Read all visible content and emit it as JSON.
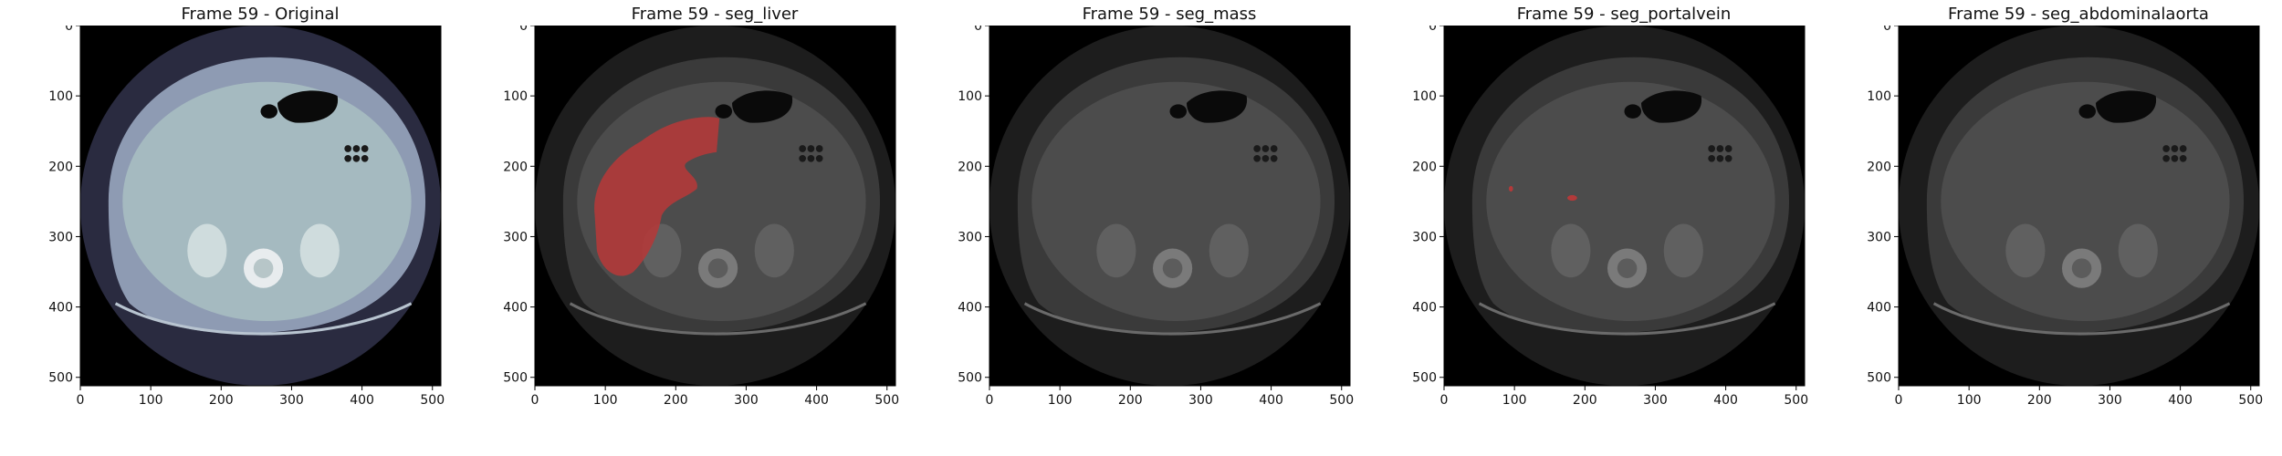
{
  "panels": [
    {
      "title": "Frame 59 - Original",
      "mode": "original"
    },
    {
      "title": "Frame 59 - seg_liver",
      "mode": "gray",
      "overlay": "liver"
    },
    {
      "title": "Frame 59 - seg_mass",
      "mode": "gray",
      "overlay": "none"
    },
    {
      "title": "Frame 59 - seg_portalvein",
      "mode": "gray",
      "overlay": "portalvein"
    },
    {
      "title": "Frame 59 - seg_abdominalaorta",
      "mode": "gray",
      "overlay": "none"
    }
  ],
  "axes": {
    "x_ticks": [
      "0",
      "100",
      "200",
      "300",
      "400",
      "500"
    ],
    "y_ticks": [
      "0",
      "100",
      "200",
      "300",
      "400",
      "500"
    ],
    "xlim": [
      0,
      512
    ],
    "ylim": [
      512,
      0
    ]
  },
  "colors": {
    "original_body": "#8e9bb3",
    "original_organ": "#a9c0c2",
    "gray_body": "#3a3a3a",
    "gray_organ": "#505050",
    "segmentation": "#b23a3a"
  }
}
